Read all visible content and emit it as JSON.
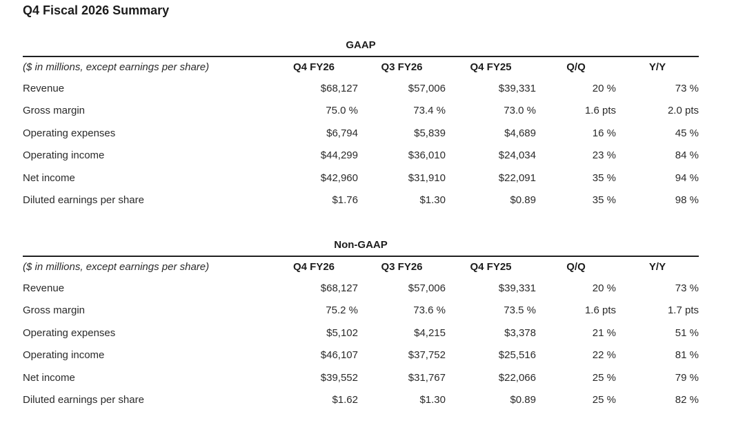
{
  "page_title": "Q4 Fiscal 2026 Summary",
  "tables": [
    {
      "title": "GAAP",
      "col_headers": [
        "($ in millions, except earnings per share)",
        "Q4 FY26",
        "Q3 FY26",
        "Q4 FY25",
        "Q/Q",
        "Y/Y"
      ],
      "rows": [
        [
          "Revenue",
          "$68,127",
          "$57,006",
          "$39,331",
          "20 %",
          "73 %"
        ],
        [
          "Gross margin",
          "75.0 %",
          "73.4 %",
          "73.0 %",
          "1.6 pts",
          "2.0 pts"
        ],
        [
          "Operating expenses",
          "$6,794",
          "$5,839",
          "$4,689",
          "16 %",
          "45 %"
        ],
        [
          "Operating income",
          "$44,299",
          "$36,010",
          "$24,034",
          "23 %",
          "84 %"
        ],
        [
          "Net income",
          "$42,960",
          "$31,910",
          "$22,091",
          "35 %",
          "94 %"
        ],
        [
          "Diluted earnings per share",
          "$1.76",
          "$1.30",
          "$0.89",
          "35 %",
          "98 %"
        ]
      ]
    },
    {
      "title": "Non-GAAP",
      "col_headers": [
        "($ in millions, except earnings per share)",
        "Q4 FY26",
        "Q3 FY26",
        "Q4 FY25",
        "Q/Q",
        "Y/Y"
      ],
      "rows": [
        [
          "Revenue",
          "$68,127",
          "$57,006",
          "$39,331",
          "20 %",
          "73 %"
        ],
        [
          "Gross margin",
          "75.2 %",
          "73.6 %",
          "73.5 %",
          "1.6 pts",
          "1.7 pts"
        ],
        [
          "Operating expenses",
          "$5,102",
          "$4,215",
          "$3,378",
          "21 %",
          "51 %"
        ],
        [
          "Operating income",
          "$46,107",
          "$37,752",
          "$25,516",
          "22 %",
          "81 %"
        ],
        [
          "Net income",
          "$39,552",
          "$31,767",
          "$22,066",
          "25 %",
          "79 %"
        ],
        [
          "Diluted earnings per share",
          "$1.62",
          "$1.30",
          "$0.89",
          "25 %",
          "82 %"
        ]
      ]
    }
  ],
  "colors": {
    "text": "#2a2a2a",
    "heading": "#1c1c1c",
    "rule": "#1f1f1f",
    "background": "#ffffff"
  }
}
